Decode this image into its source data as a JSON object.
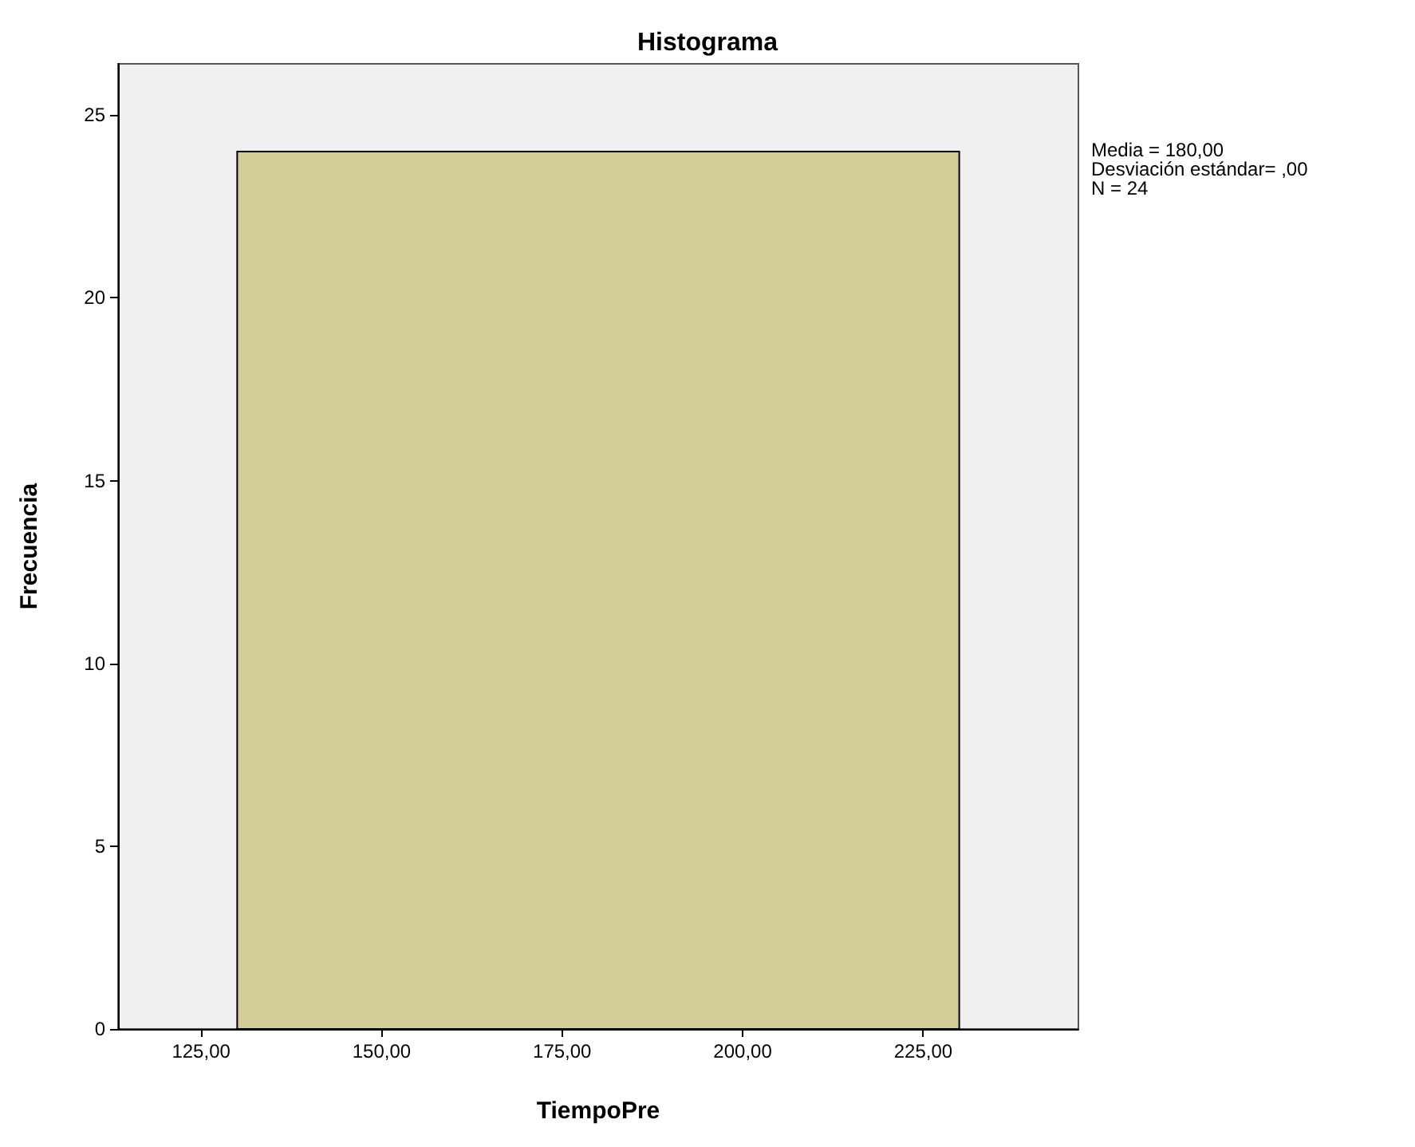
{
  "chart_data": {
    "type": "histogram",
    "title": "Histograma",
    "xlabel": "TiempoPre",
    "ylabel": "Frecuencia",
    "bins": [
      130,
      230
    ],
    "values": [
      24
    ],
    "color": "#d3ce97",
    "xlim": [
      113.5,
      246.5
    ],
    "xticks": [
      {
        "value": 125,
        "label": "125,00"
      },
      {
        "value": 150,
        "label": "150,00"
      },
      {
        "value": 175,
        "label": "175,00"
      },
      {
        "value": 200,
        "label": "200,00"
      },
      {
        "value": 225,
        "label": "225,00"
      }
    ],
    "ylim": [
      0,
      26.4
    ],
    "yticks": [
      0,
      5,
      10,
      15,
      20,
      25
    ],
    "annotations": [
      "Media = 180,00",
      "Desviación estándar= ,00",
      "N = 24"
    ],
    "grid": false
  }
}
